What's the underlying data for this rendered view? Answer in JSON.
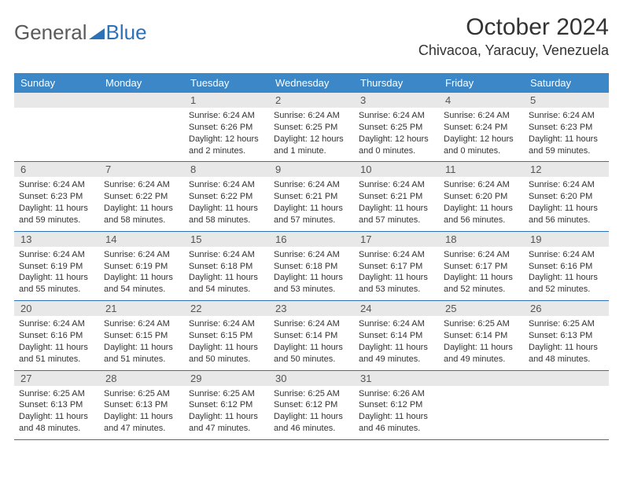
{
  "logo": {
    "text1": "General",
    "text2": "Blue"
  },
  "title": "October 2024",
  "location": "Chivacoa, Yaracuy, Venezuela",
  "colors": {
    "header_bg": "#3b87c8",
    "header_text": "#ffffff",
    "daynum_bg": "#e8e8e8",
    "border": "#2d72b8",
    "text": "#333333"
  },
  "day_headers": [
    "Sunday",
    "Monday",
    "Tuesday",
    "Wednesday",
    "Thursday",
    "Friday",
    "Saturday"
  ],
  "weeks": [
    [
      {
        "n": "",
        "sr": "",
        "ss": "",
        "dl": ""
      },
      {
        "n": "",
        "sr": "",
        "ss": "",
        "dl": ""
      },
      {
        "n": "1",
        "sr": "Sunrise: 6:24 AM",
        "ss": "Sunset: 6:26 PM",
        "dl": "Daylight: 12 hours and 2 minutes."
      },
      {
        "n": "2",
        "sr": "Sunrise: 6:24 AM",
        "ss": "Sunset: 6:25 PM",
        "dl": "Daylight: 12 hours and 1 minute."
      },
      {
        "n": "3",
        "sr": "Sunrise: 6:24 AM",
        "ss": "Sunset: 6:25 PM",
        "dl": "Daylight: 12 hours and 0 minutes."
      },
      {
        "n": "4",
        "sr": "Sunrise: 6:24 AM",
        "ss": "Sunset: 6:24 PM",
        "dl": "Daylight: 12 hours and 0 minutes."
      },
      {
        "n": "5",
        "sr": "Sunrise: 6:24 AM",
        "ss": "Sunset: 6:23 PM",
        "dl": "Daylight: 11 hours and 59 minutes."
      }
    ],
    [
      {
        "n": "6",
        "sr": "Sunrise: 6:24 AM",
        "ss": "Sunset: 6:23 PM",
        "dl": "Daylight: 11 hours and 59 minutes."
      },
      {
        "n": "7",
        "sr": "Sunrise: 6:24 AM",
        "ss": "Sunset: 6:22 PM",
        "dl": "Daylight: 11 hours and 58 minutes."
      },
      {
        "n": "8",
        "sr": "Sunrise: 6:24 AM",
        "ss": "Sunset: 6:22 PM",
        "dl": "Daylight: 11 hours and 58 minutes."
      },
      {
        "n": "9",
        "sr": "Sunrise: 6:24 AM",
        "ss": "Sunset: 6:21 PM",
        "dl": "Daylight: 11 hours and 57 minutes."
      },
      {
        "n": "10",
        "sr": "Sunrise: 6:24 AM",
        "ss": "Sunset: 6:21 PM",
        "dl": "Daylight: 11 hours and 57 minutes."
      },
      {
        "n": "11",
        "sr": "Sunrise: 6:24 AM",
        "ss": "Sunset: 6:20 PM",
        "dl": "Daylight: 11 hours and 56 minutes."
      },
      {
        "n": "12",
        "sr": "Sunrise: 6:24 AM",
        "ss": "Sunset: 6:20 PM",
        "dl": "Daylight: 11 hours and 56 minutes."
      }
    ],
    [
      {
        "n": "13",
        "sr": "Sunrise: 6:24 AM",
        "ss": "Sunset: 6:19 PM",
        "dl": "Daylight: 11 hours and 55 minutes."
      },
      {
        "n": "14",
        "sr": "Sunrise: 6:24 AM",
        "ss": "Sunset: 6:19 PM",
        "dl": "Daylight: 11 hours and 54 minutes."
      },
      {
        "n": "15",
        "sr": "Sunrise: 6:24 AM",
        "ss": "Sunset: 6:18 PM",
        "dl": "Daylight: 11 hours and 54 minutes."
      },
      {
        "n": "16",
        "sr": "Sunrise: 6:24 AM",
        "ss": "Sunset: 6:18 PM",
        "dl": "Daylight: 11 hours and 53 minutes."
      },
      {
        "n": "17",
        "sr": "Sunrise: 6:24 AM",
        "ss": "Sunset: 6:17 PM",
        "dl": "Daylight: 11 hours and 53 minutes."
      },
      {
        "n": "18",
        "sr": "Sunrise: 6:24 AM",
        "ss": "Sunset: 6:17 PM",
        "dl": "Daylight: 11 hours and 52 minutes."
      },
      {
        "n": "19",
        "sr": "Sunrise: 6:24 AM",
        "ss": "Sunset: 6:16 PM",
        "dl": "Daylight: 11 hours and 52 minutes."
      }
    ],
    [
      {
        "n": "20",
        "sr": "Sunrise: 6:24 AM",
        "ss": "Sunset: 6:16 PM",
        "dl": "Daylight: 11 hours and 51 minutes."
      },
      {
        "n": "21",
        "sr": "Sunrise: 6:24 AM",
        "ss": "Sunset: 6:15 PM",
        "dl": "Daylight: 11 hours and 51 minutes."
      },
      {
        "n": "22",
        "sr": "Sunrise: 6:24 AM",
        "ss": "Sunset: 6:15 PM",
        "dl": "Daylight: 11 hours and 50 minutes."
      },
      {
        "n": "23",
        "sr": "Sunrise: 6:24 AM",
        "ss": "Sunset: 6:14 PM",
        "dl": "Daylight: 11 hours and 50 minutes."
      },
      {
        "n": "24",
        "sr": "Sunrise: 6:24 AM",
        "ss": "Sunset: 6:14 PM",
        "dl": "Daylight: 11 hours and 49 minutes."
      },
      {
        "n": "25",
        "sr": "Sunrise: 6:25 AM",
        "ss": "Sunset: 6:14 PM",
        "dl": "Daylight: 11 hours and 49 minutes."
      },
      {
        "n": "26",
        "sr": "Sunrise: 6:25 AM",
        "ss": "Sunset: 6:13 PM",
        "dl": "Daylight: 11 hours and 48 minutes."
      }
    ],
    [
      {
        "n": "27",
        "sr": "Sunrise: 6:25 AM",
        "ss": "Sunset: 6:13 PM",
        "dl": "Daylight: 11 hours and 48 minutes."
      },
      {
        "n": "28",
        "sr": "Sunrise: 6:25 AM",
        "ss": "Sunset: 6:13 PM",
        "dl": "Daylight: 11 hours and 47 minutes."
      },
      {
        "n": "29",
        "sr": "Sunrise: 6:25 AM",
        "ss": "Sunset: 6:12 PM",
        "dl": "Daylight: 11 hours and 47 minutes."
      },
      {
        "n": "30",
        "sr": "Sunrise: 6:25 AM",
        "ss": "Sunset: 6:12 PM",
        "dl": "Daylight: 11 hours and 46 minutes."
      },
      {
        "n": "31",
        "sr": "Sunrise: 6:26 AM",
        "ss": "Sunset: 6:12 PM",
        "dl": "Daylight: 11 hours and 46 minutes."
      },
      {
        "n": "",
        "sr": "",
        "ss": "",
        "dl": ""
      },
      {
        "n": "",
        "sr": "",
        "ss": "",
        "dl": ""
      }
    ]
  ]
}
